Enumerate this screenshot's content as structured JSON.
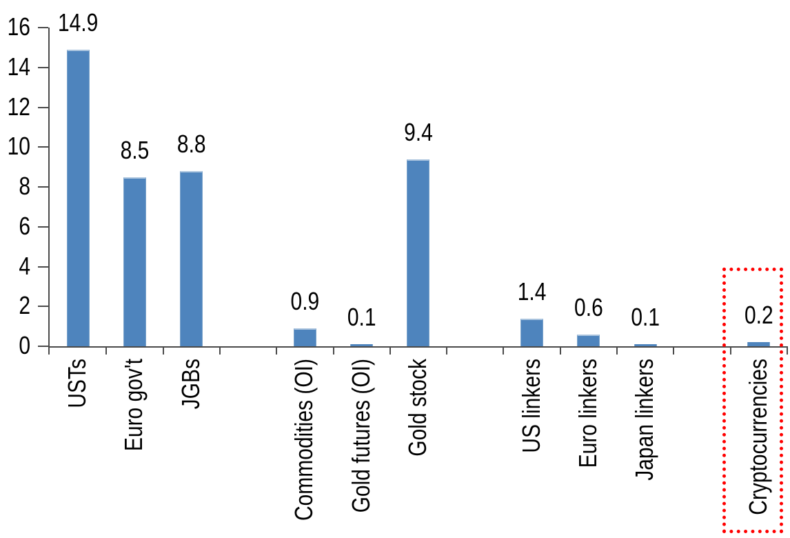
{
  "chart_data": {
    "type": "bar",
    "title": "",
    "xlabel": "",
    "ylabel": "",
    "categories": [
      "USTs",
      "Euro gov't",
      "JGBs",
      "Commodities (OI)",
      "Gold futures (OI)",
      "Gold stock",
      "US linkers",
      "Euro linkers",
      "Japan linkers",
      "Cryptocurrencies"
    ],
    "values": [
      14.9,
      8.5,
      8.8,
      0.9,
      0.1,
      9.4,
      1.4,
      0.6,
      0.1,
      0.2
    ],
    "data_labels": [
      "14.9",
      "8.5",
      "8.8",
      "0.9",
      "0.1",
      "9.4",
      "1.4",
      "0.6",
      "0.1",
      "0.2"
    ],
    "slots": [
      1,
      2,
      3,
      5,
      6,
      7,
      9,
      10,
      11,
      13
    ],
    "total_slots": 13,
    "ylim": [
      0,
      16
    ],
    "yticks": [
      0,
      2,
      4,
      6,
      8,
      10,
      12,
      14,
      16
    ],
    "grid": "off",
    "legend": "none",
    "bar_color": "#4E84BD",
    "axis_color": "#4A4A4A",
    "text_color": "#000000",
    "highlight": {
      "category": "Cryptocurrencies",
      "shape": "dotted-rectangle",
      "color": "#FF0000"
    }
  }
}
